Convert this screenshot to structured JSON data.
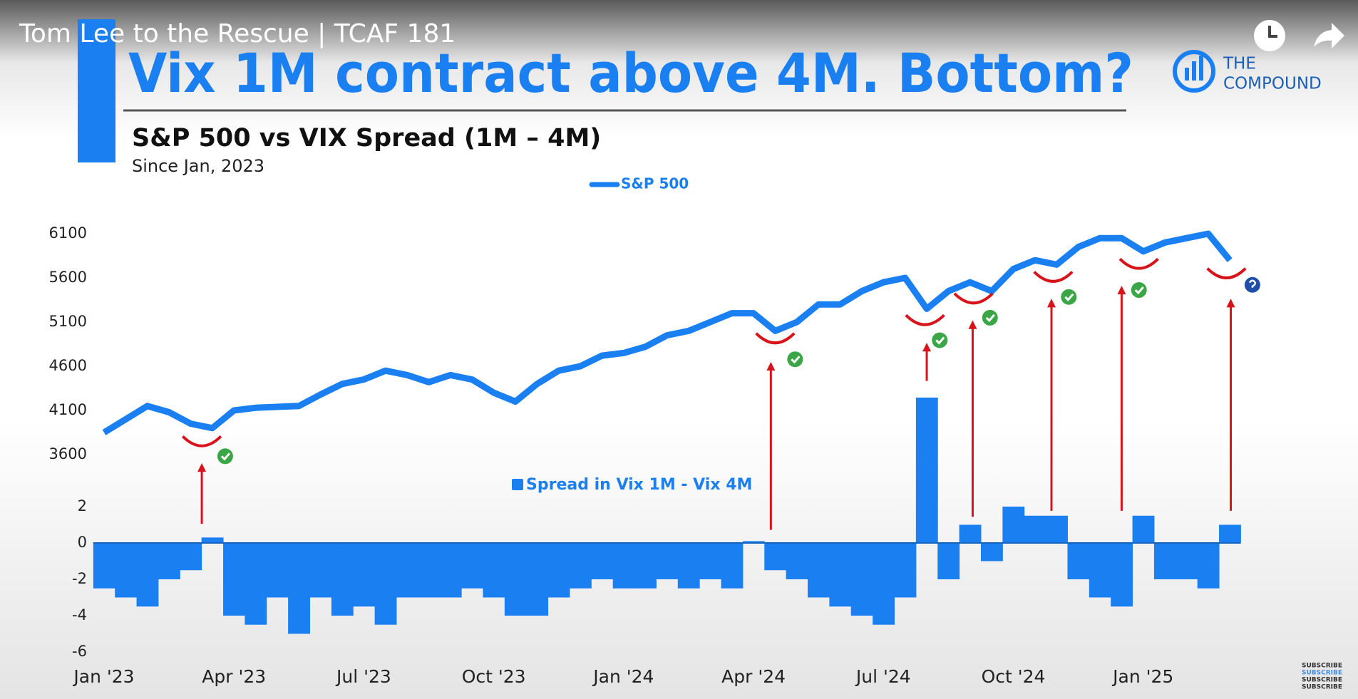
{
  "video_title": "Tom Lee to the Rescue | TCAF 181",
  "slide": {
    "headline": "Vix 1M contract above 4M. Bottom?",
    "logo": [
      "THE",
      "COMPOUND"
    ],
    "subscribe": "SUBSCRIBE"
  },
  "chart_data": [
    {
      "type": "line",
      "title": "S&P 500 vs VIX Spread (1M – 4M)",
      "subtitle": "Since Jan, 2023",
      "series": [
        {
          "name": "S&P 500",
          "color": "#1a7ff0",
          "values": [
            3850,
            4000,
            4150,
            4080,
            3950,
            3900,
            4100,
            4130,
            4140,
            4150,
            4280,
            4400,
            4450,
            4550,
            4500,
            4420,
            4500,
            4450,
            4300,
            4200,
            4400,
            4550,
            4600,
            4720,
            4750,
            4820,
            4950,
            5000,
            5100,
            5200,
            5200,
            5000,
            5100,
            5300,
            5300,
            5450,
            5550,
            5600,
            5250,
            5450,
            5550,
            5450,
            5700,
            5800,
            5750,
            5950,
            6050,
            6050,
            5900,
            6000,
            6050,
            6100,
            5800
          ]
        }
      ],
      "ylim": [
        3600,
        6100
      ],
      "yticks": [
        3600,
        4100,
        4600,
        5100,
        5600,
        6100
      ]
    },
    {
      "type": "bar",
      "categories": [
        "Jan '23",
        null,
        null,
        null,
        null,
        null,
        "Apr '23",
        null,
        null,
        null,
        null,
        null,
        "Jul '23",
        null,
        null,
        null,
        null,
        null,
        "Oct '23",
        null,
        null,
        null,
        null,
        null,
        "Jan '24",
        null,
        null,
        null,
        null,
        null,
        "Apr '24",
        null,
        null,
        null,
        null,
        null,
        "Jul '24",
        null,
        null,
        null,
        null,
        null,
        "Oct '24",
        null,
        null,
        null,
        null,
        null,
        "Jan '25",
        null,
        null,
        null,
        null
      ],
      "series": [
        {
          "name": "Spread in Vix 1M - Vix 4M",
          "color": "#1a7ff0",
          "values": [
            -2.5,
            -3,
            -3.5,
            -2,
            -1.5,
            0.3,
            -4,
            -4.5,
            -3,
            -5,
            -3,
            -4,
            -3.5,
            -4.5,
            -3,
            -3,
            -3,
            -2.5,
            -3,
            -4,
            -4,
            -3,
            -2.5,
            -2,
            -2.5,
            -2.5,
            -2,
            -2.5,
            -2,
            -2.5,
            0.1,
            -1.5,
            -2,
            -3,
            -3.5,
            -4,
            -4.5,
            -3,
            8,
            -2,
            1,
            -1,
            2,
            1.5,
            1.5,
            -2,
            -3,
            -3.5,
            1.5,
            -2,
            -2,
            -2.5,
            1
          ]
        }
      ],
      "ylim": [
        -6,
        8
      ],
      "yticks": [
        -6,
        -4,
        -2,
        0,
        2
      ]
    }
  ]
}
